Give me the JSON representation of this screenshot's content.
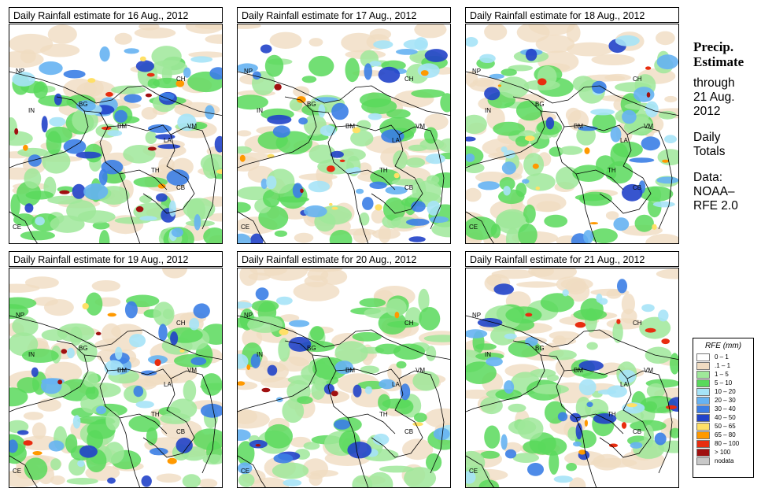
{
  "panels": [
    {
      "title": "Daily Rainfall estimate for  16 Aug., 2012",
      "intensity": 1.0
    },
    {
      "title": "Daily Rainfall estimate for  17 Aug., 2012",
      "intensity": 0.95
    },
    {
      "title": "Daily Rainfall estimate for  18 Aug., 2012",
      "intensity": 0.8
    },
    {
      "title": "Daily Rainfall estimate for  19 Aug., 2012",
      "intensity": 0.7
    },
    {
      "title": "Daily Rainfall estimate for  20 Aug., 2012",
      "intensity": 0.6
    },
    {
      "title": "Daily Rainfall estimate for  21 Aug., 2012",
      "intensity": 0.75
    }
  ],
  "country_labels": [
    "NP",
    "CH",
    "IN",
    "BG",
    "BM",
    "VM",
    "LA",
    "TH",
    "CB",
    "CE"
  ],
  "side": {
    "title_line1": "Precip.",
    "title_line2": "Estimate",
    "line1": "through",
    "line2": "21 Aug.",
    "line3": "2012",
    "line4": "Daily",
    "line5": "Totals",
    "line6": "Data:",
    "line7": "NOAA–",
    "line8": "RFE 2.0"
  },
  "legend": {
    "title": "RFE (mm)",
    "items": [
      {
        "label": "0 – 1",
        "color": "#ffffff"
      },
      {
        "label": ".1 – 1",
        "color": "#f0dcc2"
      },
      {
        "label": "1 – 5",
        "color": "#9fe89a"
      },
      {
        "label": "5 – 10",
        "color": "#59d95c"
      },
      {
        "label": "10 – 20",
        "color": "#a6e3f7"
      },
      {
        "label": "20 – 30",
        "color": "#66b3f2"
      },
      {
        "label": "30 – 40",
        "color": "#3b7ee6"
      },
      {
        "label": "40 – 50",
        "color": "#2143c9"
      },
      {
        "label": "50 – 65",
        "color": "#ffe066"
      },
      {
        "label": "65 – 80",
        "color": "#ff9900"
      },
      {
        "label": "80 – 100",
        "color": "#e82d10"
      },
      {
        "label": "> 100",
        "color": "#a01010"
      },
      {
        "label": "nodata",
        "color": "#c8c8c8"
      }
    ]
  }
}
